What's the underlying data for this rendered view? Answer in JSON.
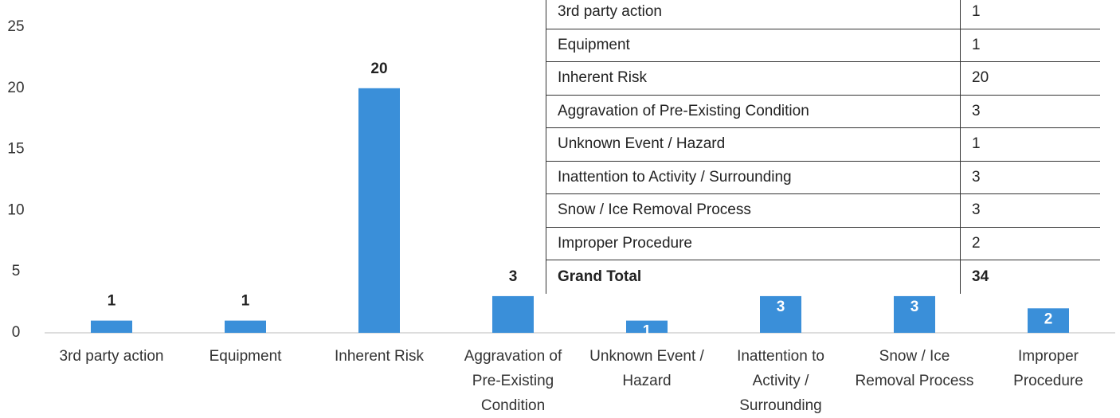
{
  "chart_data": {
    "type": "bar",
    "categories": [
      "3rd party action",
      "Equipment",
      "Inherent Risk",
      "Aggravation of Pre-Existing Condition",
      "Unknown Event / Hazard",
      "Inattention to Activity / Surrounding",
      "Snow / Ice Removal Process",
      "Improper Procedure"
    ],
    "values": [
      1,
      1,
      20,
      3,
      1,
      3,
      3,
      2
    ],
    "color": "#3a8fd9",
    "ylim": [
      0,
      25
    ],
    "yticks": [
      0,
      5,
      10,
      15,
      20,
      25
    ],
    "grid": false
  },
  "table": {
    "rows": [
      [
        "3rd party action",
        "1"
      ],
      [
        "Equipment",
        "1"
      ],
      [
        "Inherent Risk",
        "20"
      ],
      [
        "Aggravation of Pre-Existing Condition",
        "3"
      ],
      [
        "Unknown Event / Hazard",
        "1"
      ],
      [
        "Inattention to Activity / Surrounding",
        "3"
      ],
      [
        "Snow / Ice Removal Process",
        "3"
      ],
      [
        "Improper Procedure",
        "2"
      ]
    ],
    "total": [
      "Grand Total",
      "34"
    ]
  }
}
